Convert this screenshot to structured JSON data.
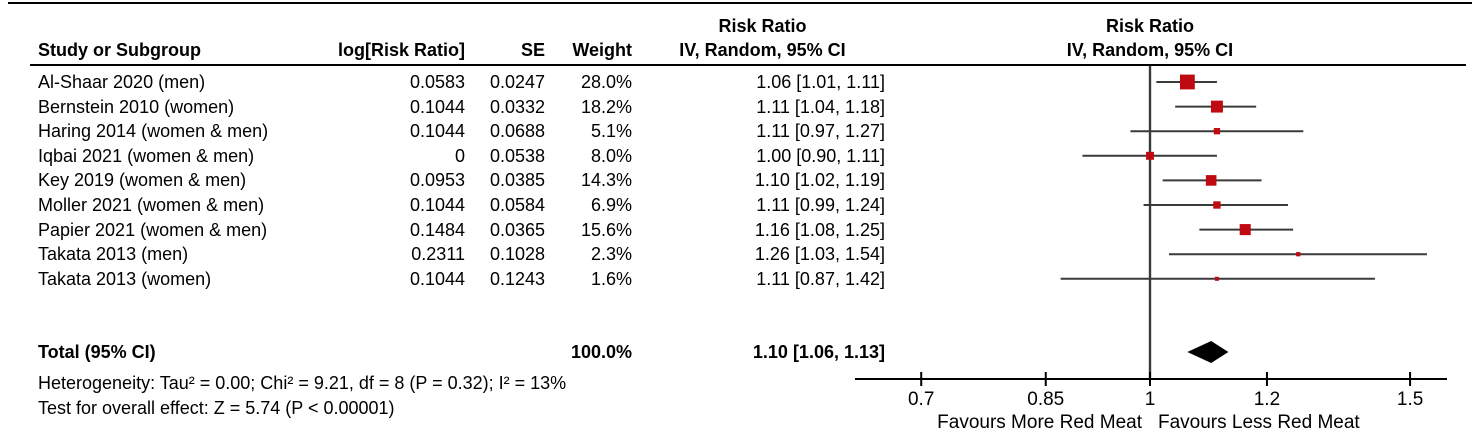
{
  "columns": {
    "study": "Study or Subgroup",
    "log_rr": "log[Risk Ratio]",
    "se": "SE",
    "weight": "Weight",
    "ci": "IV, Random, 95% CI",
    "risk_ratio": "Risk Ratio"
  },
  "plot_header": {
    "line1": "Risk Ratio",
    "line2": "IV, Random, 95% CI"
  },
  "chart_data": {
    "type": "forest",
    "x_scale": "log",
    "null_line_value": 1,
    "tick_values": [
      0.7,
      0.85,
      1,
      1.2,
      1.5
    ],
    "tick_labels": [
      "0.7",
      "0.85",
      "1",
      "1.2",
      "1.5"
    ],
    "favours_left": "Favours More Red Meat",
    "favours_right": "Favours Less Red Meat",
    "marker_color": "#bf0a12",
    "diamond_color": "#000000",
    "line_color": "#3a3a3a",
    "studies": [
      {
        "name": "Al-Shaar 2020 (men)",
        "log_rr": "0.0583",
        "se": "0.0247",
        "weight": "28.0%",
        "weight_pct": 28.0,
        "rr": 1.06,
        "ci_low": 1.01,
        "ci_high": 1.11,
        "ci_text": "1.06 [1.01, 1.11]"
      },
      {
        "name": "Bernstein 2010 (women)",
        "log_rr": "0.1044",
        "se": "0.0332",
        "weight": "18.2%",
        "weight_pct": 18.2,
        "rr": 1.11,
        "ci_low": 1.04,
        "ci_high": 1.18,
        "ci_text": "1.11 [1.04, 1.18]"
      },
      {
        "name": "Haring 2014 (women & men)",
        "log_rr": "0.1044",
        "se": "0.0688",
        "weight": "5.1%",
        "weight_pct": 5.1,
        "rr": 1.11,
        "ci_low": 0.97,
        "ci_high": 1.27,
        "ci_text": "1.11 [0.97, 1.27]"
      },
      {
        "name": "Iqbai 2021 (women & men)",
        "log_rr": "0",
        "se": "0.0538",
        "weight": "8.0%",
        "weight_pct": 8.0,
        "rr": 1.0,
        "ci_low": 0.9,
        "ci_high": 1.11,
        "ci_text": "1.00 [0.90, 1.11]"
      },
      {
        "name": "Key 2019 (women & men)",
        "log_rr": "0.0953",
        "se": "0.0385",
        "weight": "14.3%",
        "weight_pct": 14.3,
        "rr": 1.1,
        "ci_low": 1.02,
        "ci_high": 1.19,
        "ci_text": "1.10 [1.02, 1.19]"
      },
      {
        "name": "Moller 2021 (women & men)",
        "log_rr": "0.1044",
        "se": "0.0584",
        "weight": "6.9%",
        "weight_pct": 6.9,
        "rr": 1.11,
        "ci_low": 0.99,
        "ci_high": 1.24,
        "ci_text": "1.11 [0.99, 1.24]"
      },
      {
        "name": "Papier 2021 (women & men)",
        "log_rr": "0.1484",
        "se": "0.0365",
        "weight": "15.6%",
        "weight_pct": 15.6,
        "rr": 1.16,
        "ci_low": 1.08,
        "ci_high": 1.25,
        "ci_text": "1.16 [1.08, 1.25]"
      },
      {
        "name": "Takata 2013 (men)",
        "log_rr": "0.2311",
        "se": "0.1028",
        "weight": "2.3%",
        "weight_pct": 2.3,
        "rr": 1.26,
        "ci_low": 1.03,
        "ci_high": 1.54,
        "ci_text": "1.26 [1.03, 1.54]"
      },
      {
        "name": "Takata 2013 (women)",
        "log_rr": "0.1044",
        "se": "0.1243",
        "weight": "1.6%",
        "weight_pct": 1.6,
        "rr": 1.11,
        "ci_low": 0.87,
        "ci_high": 1.42,
        "ci_text": "1.11 [0.87, 1.42]"
      }
    ],
    "total": {
      "label": "Total (95% CI)",
      "weight": "100.0%",
      "weight_pct": 100.0,
      "rr": 1.1,
      "ci_low": 1.06,
      "ci_high": 1.13,
      "ci_text": "1.10 [1.06, 1.13]"
    },
    "footnotes": {
      "heterogeneity": "Heterogeneity: Tau² = 0.00; Chi² = 9.21, df = 8 (P = 0.32); I² = 13%",
      "overall_effect": "Test for overall effect: Z = 5.74 (P < 0.00001)"
    }
  }
}
